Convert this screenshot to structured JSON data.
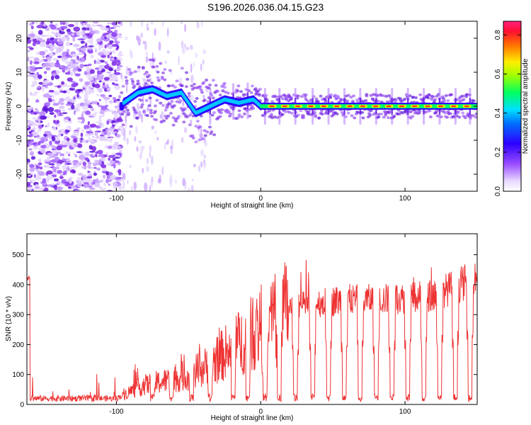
{
  "title": "S196.2026.036.04.15.G23",
  "chart_data": [
    {
      "type": "heatmap",
      "name": "spectrogram",
      "xlabel": "Height of straight line (km)",
      "ylabel": "Frequency (Hz)",
      "xlim": [
        -162,
        150
      ],
      "ylim": [
        -25,
        25
      ],
      "xticks": [
        -100,
        0,
        100
      ],
      "yticks": [
        -20,
        -10,
        0,
        10,
        20
      ],
      "colorbar": {
        "label": "Normalized spectral amplitude",
        "range": [
          0.0,
          0.87
        ],
        "ticks": [
          0.0,
          0.2,
          0.4,
          0.6,
          0.8
        ]
      },
      "ridge": {
        "description_points_x": [
          -95,
          -85,
          -75,
          -65,
          -55,
          -45,
          -35,
          -25,
          -15,
          -5,
          0,
          20,
          60,
          100,
          150
        ],
        "description_points_freq": [
          1,
          4,
          5,
          3,
          4,
          -2,
          0,
          2,
          1,
          2,
          0,
          0,
          0,
          0,
          0
        ]
      }
    },
    {
      "type": "line",
      "name": "snr",
      "xlabel": "Height of straight line (km)",
      "ylabel": "SNR (10 * v/v)",
      "xlim": [
        -162,
        150
      ],
      "ylim": [
        0,
        570
      ],
      "xticks": [
        -100,
        0,
        100
      ],
      "yticks": [
        0,
        100,
        200,
        300,
        400,
        500
      ],
      "color": "#ee3333",
      "series": [
        {
          "name": "SNR",
          "x": [
            -160,
            -140,
            -120,
            -100,
            -90,
            -80,
            -70,
            -60,
            -50,
            -40,
            -30,
            -20,
            -10,
            0,
            10,
            20,
            30,
            40,
            60,
            80,
            100,
            120,
            140,
            150
          ],
          "y": [
            20,
            20,
            20,
            20,
            45,
            65,
            75,
            85,
            100,
            120,
            150,
            190,
            220,
            260,
            300,
            320,
            330,
            340,
            350,
            350,
            355,
            365,
            405,
            420
          ]
        }
      ],
      "dips_x": [
        -75,
        -62,
        -48,
        -35,
        -19,
        -9,
        3,
        13,
        24,
        36,
        47,
        58,
        69,
        80,
        91,
        102,
        113,
        124,
        135,
        145
      ]
    }
  ]
}
